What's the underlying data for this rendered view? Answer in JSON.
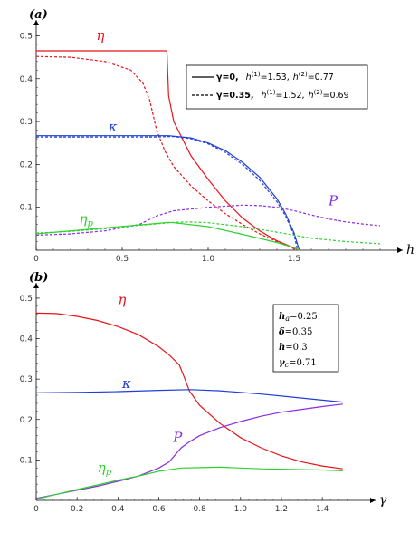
{
  "chart_data": [
    {
      "type": "line",
      "panel_label": "(a)",
      "xlabel": "h",
      "ylabel": "",
      "xlim": [
        0,
        2
      ],
      "ylim": [
        0,
        0.52
      ],
      "xticks": [
        "0",
        "0.5",
        "1.0",
        "1.5"
      ],
      "xtick_values": [
        0,
        0.5,
        1.0,
        1.5
      ],
      "yticks": [
        "0.1",
        "0.2",
        "0.3",
        "0.4",
        "0.5"
      ],
      "ytick_values": [
        0.1,
        0.2,
        0.3,
        0.4,
        0.5
      ],
      "legend": {
        "placement": "top-right",
        "entries": [
          {
            "style": "solid",
            "gamma_text": "γ=0,",
            "hc1": "h",
            "hc1_sup": "(1)",
            "hc1_val": "=1.53,",
            "hc2": "h",
            "hc2_sup": "(2)",
            "hc2_val": "=0.77"
          },
          {
            "style": "dashed",
            "gamma_text": "γ=0.35,",
            "hc1": "h",
            "hc1_sup": "(1)",
            "hc1_val": "=1.52,",
            "hc2": "h",
            "hc2_sup": "(2)",
            "hc2_val": "=0.69"
          }
        ]
      },
      "series": [
        {
          "name": "η",
          "color": "#e8141b",
          "style": "solid",
          "x": [
            0,
            0.76,
            0.77,
            0.8,
            0.9,
            1.0,
            1.1,
            1.2,
            1.3,
            1.4,
            1.5,
            1.53
          ],
          "y": [
            0.465,
            0.465,
            0.36,
            0.3,
            0.22,
            0.165,
            0.115,
            0.075,
            0.045,
            0.022,
            0.005,
            0
          ]
        },
        {
          "name": "η",
          "color": "#e8141b",
          "style": "dashed",
          "x": [
            0,
            0.2,
            0.4,
            0.55,
            0.62,
            0.66,
            0.7,
            0.75,
            0.8,
            0.9,
            1.0,
            1.1,
            1.2,
            1.3,
            1.4,
            1.52
          ],
          "y": [
            0.452,
            0.45,
            0.44,
            0.42,
            0.39,
            0.35,
            0.28,
            0.23,
            0.195,
            0.15,
            0.115,
            0.085,
            0.06,
            0.038,
            0.02,
            0
          ]
        },
        {
          "name": "κ",
          "color": "#1f3fd6",
          "style": "solid",
          "x": [
            0,
            0.77,
            0.9,
            1.0,
            1.1,
            1.2,
            1.3,
            1.4,
            1.45,
            1.5,
            1.53
          ],
          "y": [
            0.267,
            0.267,
            0.262,
            0.25,
            0.232,
            0.205,
            0.17,
            0.12,
            0.085,
            0.04,
            0
          ]
        },
        {
          "name": "κ",
          "color": "#1f3fd6",
          "style": "dashed",
          "x": [
            0,
            0.69,
            0.8,
            0.9,
            1.0,
            1.1,
            1.2,
            1.3,
            1.4,
            1.45,
            1.5,
            1.52
          ],
          "y": [
            0.264,
            0.264,
            0.265,
            0.26,
            0.248,
            0.228,
            0.2,
            0.163,
            0.113,
            0.08,
            0.035,
            0
          ]
        },
        {
          "name": "P",
          "color": "#8a2be2",
          "style": "dashed",
          "x": [
            0,
            0.2,
            0.4,
            0.6,
            0.7,
            0.8,
            1.0,
            1.2,
            1.3,
            1.4,
            1.5,
            1.6,
            1.7,
            1.8,
            1.9,
            2.0
          ],
          "y": [
            0.035,
            0.038,
            0.045,
            0.06,
            0.08,
            0.092,
            0.1,
            0.105,
            0.104,
            0.1,
            0.092,
            0.082,
            0.073,
            0.066,
            0.061,
            0.057
          ]
        },
        {
          "name": "η_p",
          "color": "#2fd12f",
          "style": "solid",
          "x": [
            0,
            0.77,
            0.8,
            1.0,
            1.2,
            1.4,
            1.5,
            1.53
          ],
          "y": [
            0.038,
            0.065,
            0.064,
            0.055,
            0.037,
            0.018,
            0.006,
            0
          ]
        },
        {
          "name": "η_p",
          "color": "#2fd12f",
          "style": "dashed",
          "x": [
            0,
            0.2,
            0.4,
            0.6,
            0.8,
            0.9,
            1.0,
            1.2,
            1.4,
            1.5,
            1.6,
            1.8,
            2.0
          ],
          "y": [
            0.04,
            0.044,
            0.05,
            0.058,
            0.065,
            0.066,
            0.064,
            0.055,
            0.042,
            0.035,
            0.028,
            0.02,
            0.015
          ]
        }
      ],
      "labels": [
        {
          "text": "η",
          "color": "#e8141b",
          "x": 0.35,
          "y": 0.49
        },
        {
          "text": "κ",
          "color": "#1f3fd6",
          "x": 0.42,
          "y": 0.277
        },
        {
          "text": "P",
          "color": "#8a2be2",
          "x": 1.7,
          "y": 0.105
        },
        {
          "text": "η",
          "sub": "p",
          "color": "#2fd12f",
          "x": 0.25,
          "y": 0.062
        }
      ]
    },
    {
      "type": "line",
      "panel_label": "(b)",
      "xlabel": "γ",
      "ylabel": "",
      "xlim": [
        0,
        1.55
      ],
      "ylim": [
        0,
        0.52
      ],
      "xticks": [
        "0",
        "0.2",
        "0.4",
        "0.6",
        "0.8",
        "1.0",
        "1.2",
        "1.4"
      ],
      "xtick_values": [
        0,
        0.2,
        0.4,
        0.6,
        0.8,
        1.0,
        1.2,
        1.4
      ],
      "yticks": [
        "0.1",
        "0.2",
        "0.3",
        "0.4",
        "0.5"
      ],
      "ytick_values": [
        0.1,
        0.2,
        0.3,
        0.4,
        0.5
      ],
      "params": [
        {
          "sym": "h",
          "sub": "a",
          "val": "=0.25"
        },
        {
          "sym": "δ",
          "sub": "",
          "val": "=0.35"
        },
        {
          "sym": "h",
          "sub": "",
          "val": "=0.3"
        },
        {
          "sym": "γ",
          "sub": "c",
          "val": "=0.71"
        }
      ],
      "series": [
        {
          "name": "η",
          "color": "#e8141b",
          "style": "solid",
          "x": [
            0,
            0.1,
            0.2,
            0.3,
            0.4,
            0.5,
            0.6,
            0.65,
            0.7,
            0.72,
            0.75,
            0.8,
            0.9,
            1.0,
            1.1,
            1.2,
            1.3,
            1.4,
            1.5
          ],
          "y": [
            0.463,
            0.462,
            0.455,
            0.445,
            0.43,
            0.41,
            0.38,
            0.36,
            0.335,
            0.31,
            0.27,
            0.235,
            0.19,
            0.155,
            0.13,
            0.11,
            0.095,
            0.085,
            0.078
          ]
        },
        {
          "name": "κ",
          "color": "#1f3fd6",
          "style": "solid",
          "x": [
            0,
            0.2,
            0.4,
            0.6,
            0.75,
            0.8,
            0.9,
            1.0,
            1.1,
            1.2,
            1.3,
            1.4,
            1.5
          ],
          "y": [
            0.266,
            0.267,
            0.269,
            0.272,
            0.274,
            0.273,
            0.271,
            0.267,
            0.263,
            0.258,
            0.253,
            0.248,
            0.243
          ]
        },
        {
          "name": "P",
          "color": "#8a2be2",
          "style": "solid",
          "x": [
            0,
            0.1,
            0.2,
            0.3,
            0.4,
            0.5,
            0.6,
            0.65,
            0.71,
            0.75,
            0.8,
            0.9,
            1.0,
            1.1,
            1.2,
            1.3,
            1.4,
            1.5
          ],
          "y": [
            0.005,
            0.015,
            0.025,
            0.035,
            0.047,
            0.06,
            0.08,
            0.095,
            0.13,
            0.145,
            0.16,
            0.18,
            0.195,
            0.208,
            0.218,
            0.225,
            0.232,
            0.238
          ]
        },
        {
          "name": "η_p",
          "color": "#2fd12f",
          "style": "solid",
          "x": [
            0,
            0.1,
            0.2,
            0.3,
            0.4,
            0.5,
            0.6,
            0.71,
            0.8,
            0.9,
            1.0,
            1.1,
            1.2,
            1.3,
            1.4,
            1.5
          ],
          "y": [
            0.003,
            0.015,
            0.027,
            0.038,
            0.05,
            0.06,
            0.072,
            0.08,
            0.081,
            0.082,
            0.08,
            0.078,
            0.077,
            0.076,
            0.075,
            0.073
          ]
        }
      ],
      "labels": [
        {
          "text": "η",
          "color": "#e8141b",
          "x": 0.4,
          "y": 0.485
        },
        {
          "text": "κ",
          "color": "#1f3fd6",
          "x": 0.42,
          "y": 0.278
        },
        {
          "text": "P",
          "color": "#8a2be2",
          "x": 0.67,
          "y": 0.145
        },
        {
          "text": "η",
          "sub": "p",
          "color": "#2fd12f",
          "x": 0.3,
          "y": 0.07
        }
      ]
    }
  ]
}
